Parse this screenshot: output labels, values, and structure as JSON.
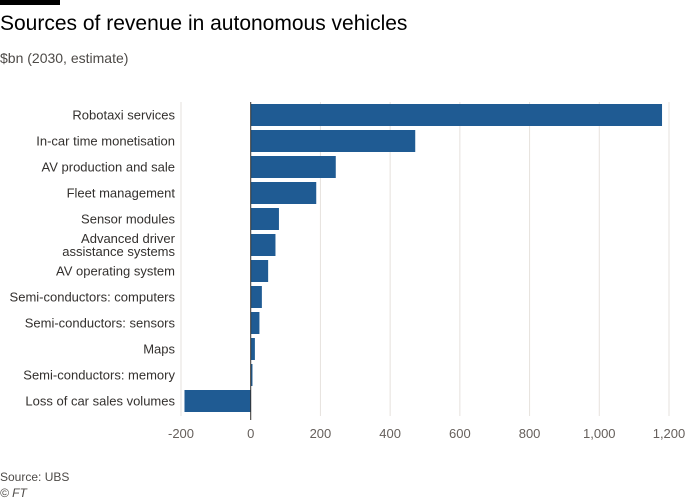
{
  "header": {
    "title": "Sources of revenue in autonomous vehicles",
    "subtitle": "$bn (2030, estimate)"
  },
  "footer": {
    "source": "Source: UBS",
    "credit": "© FT"
  },
  "colors": {
    "bar": "#1f5b93",
    "grid": "#e6e2dd",
    "zero_line": "#33302e"
  },
  "chart_data": {
    "type": "bar",
    "orientation": "horizontal",
    "title": "Sources of revenue in autonomous vehicles",
    "subtitle": "$bn (2030, estimate)",
    "categories": [
      [
        "Robotaxi services"
      ],
      [
        "In-car time monetisation"
      ],
      [
        "AV production and sale"
      ],
      [
        "Fleet management"
      ],
      [
        "Sensor modules"
      ],
      [
        "Advanced driver",
        "assistance systems"
      ],
      [
        "AV operating system"
      ],
      [
        "Semi-conductors: computers"
      ],
      [
        "Semi-conductors: sensors"
      ],
      [
        "Maps"
      ],
      [
        "Semi-conductors: memory"
      ],
      [
        "Loss of car sales volumes"
      ]
    ],
    "values": [
      1180,
      472,
      244,
      188,
      81,
      71,
      50,
      32,
      25,
      12,
      5,
      -190
    ],
    "xlim": [
      -200,
      1200
    ],
    "xticks": [
      -200,
      0,
      200,
      400,
      600,
      800,
      1000,
      1200
    ],
    "xtick_labels": [
      "-200",
      "0",
      "200",
      "400",
      "600",
      "800",
      "1,000",
      "1,200"
    ],
    "grid": true
  }
}
